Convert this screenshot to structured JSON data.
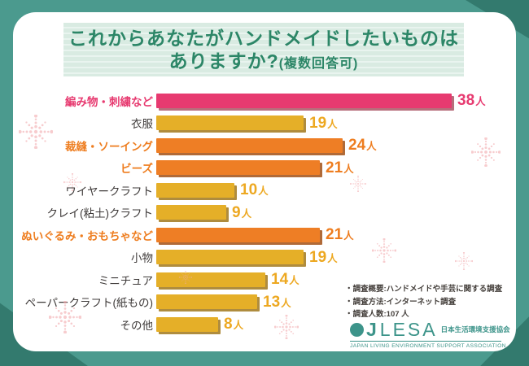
{
  "frame": {
    "background_color": "#4B9A8E",
    "corner_accent_color": "#337A6E",
    "card_color": "#FFFFFF"
  },
  "title": {
    "line1": "これからあなたがハンドメイドしたいものは",
    "line2_main": "ありますか?",
    "line2_note": "(複数回答可)",
    "text_color": "#2C8667",
    "band_color": "#D9EBE2"
  },
  "chart_data": {
    "type": "bar",
    "orientation": "horizontal",
    "title": "これからあなたがハンドメイドしたいものはありますか?(複数回答可)",
    "unit": "人",
    "xlim": [
      0,
      40
    ],
    "categories": [
      "編み物・刺繍など",
      "衣服",
      "裁縫・ソーイング",
      "ビーズ",
      "ワイヤークラフト",
      "クレイ(粘土)クラフト",
      "ぬいぐるみ・おもちゃなど",
      "小物",
      "ミニチュア",
      "ペーパークラフト(紙もの)",
      "その他"
    ],
    "values": [
      38,
      19,
      24,
      21,
      10,
      9,
      21,
      19,
      14,
      13,
      8
    ],
    "rows": [
      {
        "label": "編み物・刺繍など",
        "value": 38,
        "color_key": "pink",
        "emphasized": true
      },
      {
        "label": "衣服",
        "value": 19,
        "color_key": "yellow",
        "emphasized": false
      },
      {
        "label": "裁縫・ソーイング",
        "value": 24,
        "color_key": "orange",
        "emphasized": true
      },
      {
        "label": "ビーズ",
        "value": 21,
        "color_key": "orange",
        "emphasized": true
      },
      {
        "label": "ワイヤークラフト",
        "value": 10,
        "color_key": "yellow",
        "emphasized": false
      },
      {
        "label": "クレイ(粘土)クラフト",
        "value": 9,
        "color_key": "yellow",
        "emphasized": false
      },
      {
        "label": "ぬいぐるみ・おもちゃなど",
        "value": 21,
        "color_key": "orange",
        "emphasized": true
      },
      {
        "label": "小物",
        "value": 19,
        "color_key": "yellow",
        "emphasized": false
      },
      {
        "label": "ミニチュア",
        "value": 14,
        "color_key": "yellow",
        "emphasized": false
      },
      {
        "label": "ペーパークラフト(紙もの)",
        "value": 13,
        "color_key": "yellow",
        "emphasized": false
      },
      {
        "label": "その他",
        "value": 8,
        "color_key": "yellow",
        "emphasized": false
      }
    ],
    "palette": {
      "pink": {
        "bar": "#E73A70",
        "shadow": "#B76E7B",
        "text": "#E73A70"
      },
      "yellow": {
        "bar": "#E5AF28",
        "shadow": "#AF8C3E",
        "text": "#EDA821"
      },
      "orange": {
        "bar": "#EE7E25",
        "shadow": "#B06A38",
        "text": "#EE7D1F"
      }
    },
    "label_default_color": "#3E3A39",
    "legend": "none",
    "grid": false
  },
  "notes": {
    "color": "#443F3B",
    "items": [
      "・調査概要:ハンドメイドや手芸に関する調査",
      "・調査方法:インターネット調査",
      "・調査人数:107 人"
    ]
  },
  "logo": {
    "color": "#3D948A",
    "circle_icon": "filled-circle",
    "j": "J",
    "name": "LESA",
    "jp_name": "日本生活環境支援協会",
    "en_name": "JAPAN LIVING ENVIRONMENT SUPPORT ASSOCIATION"
  },
  "decorations": {
    "snowflake_icon": "dotted-snowflake",
    "color": "#F2ABAF"
  }
}
